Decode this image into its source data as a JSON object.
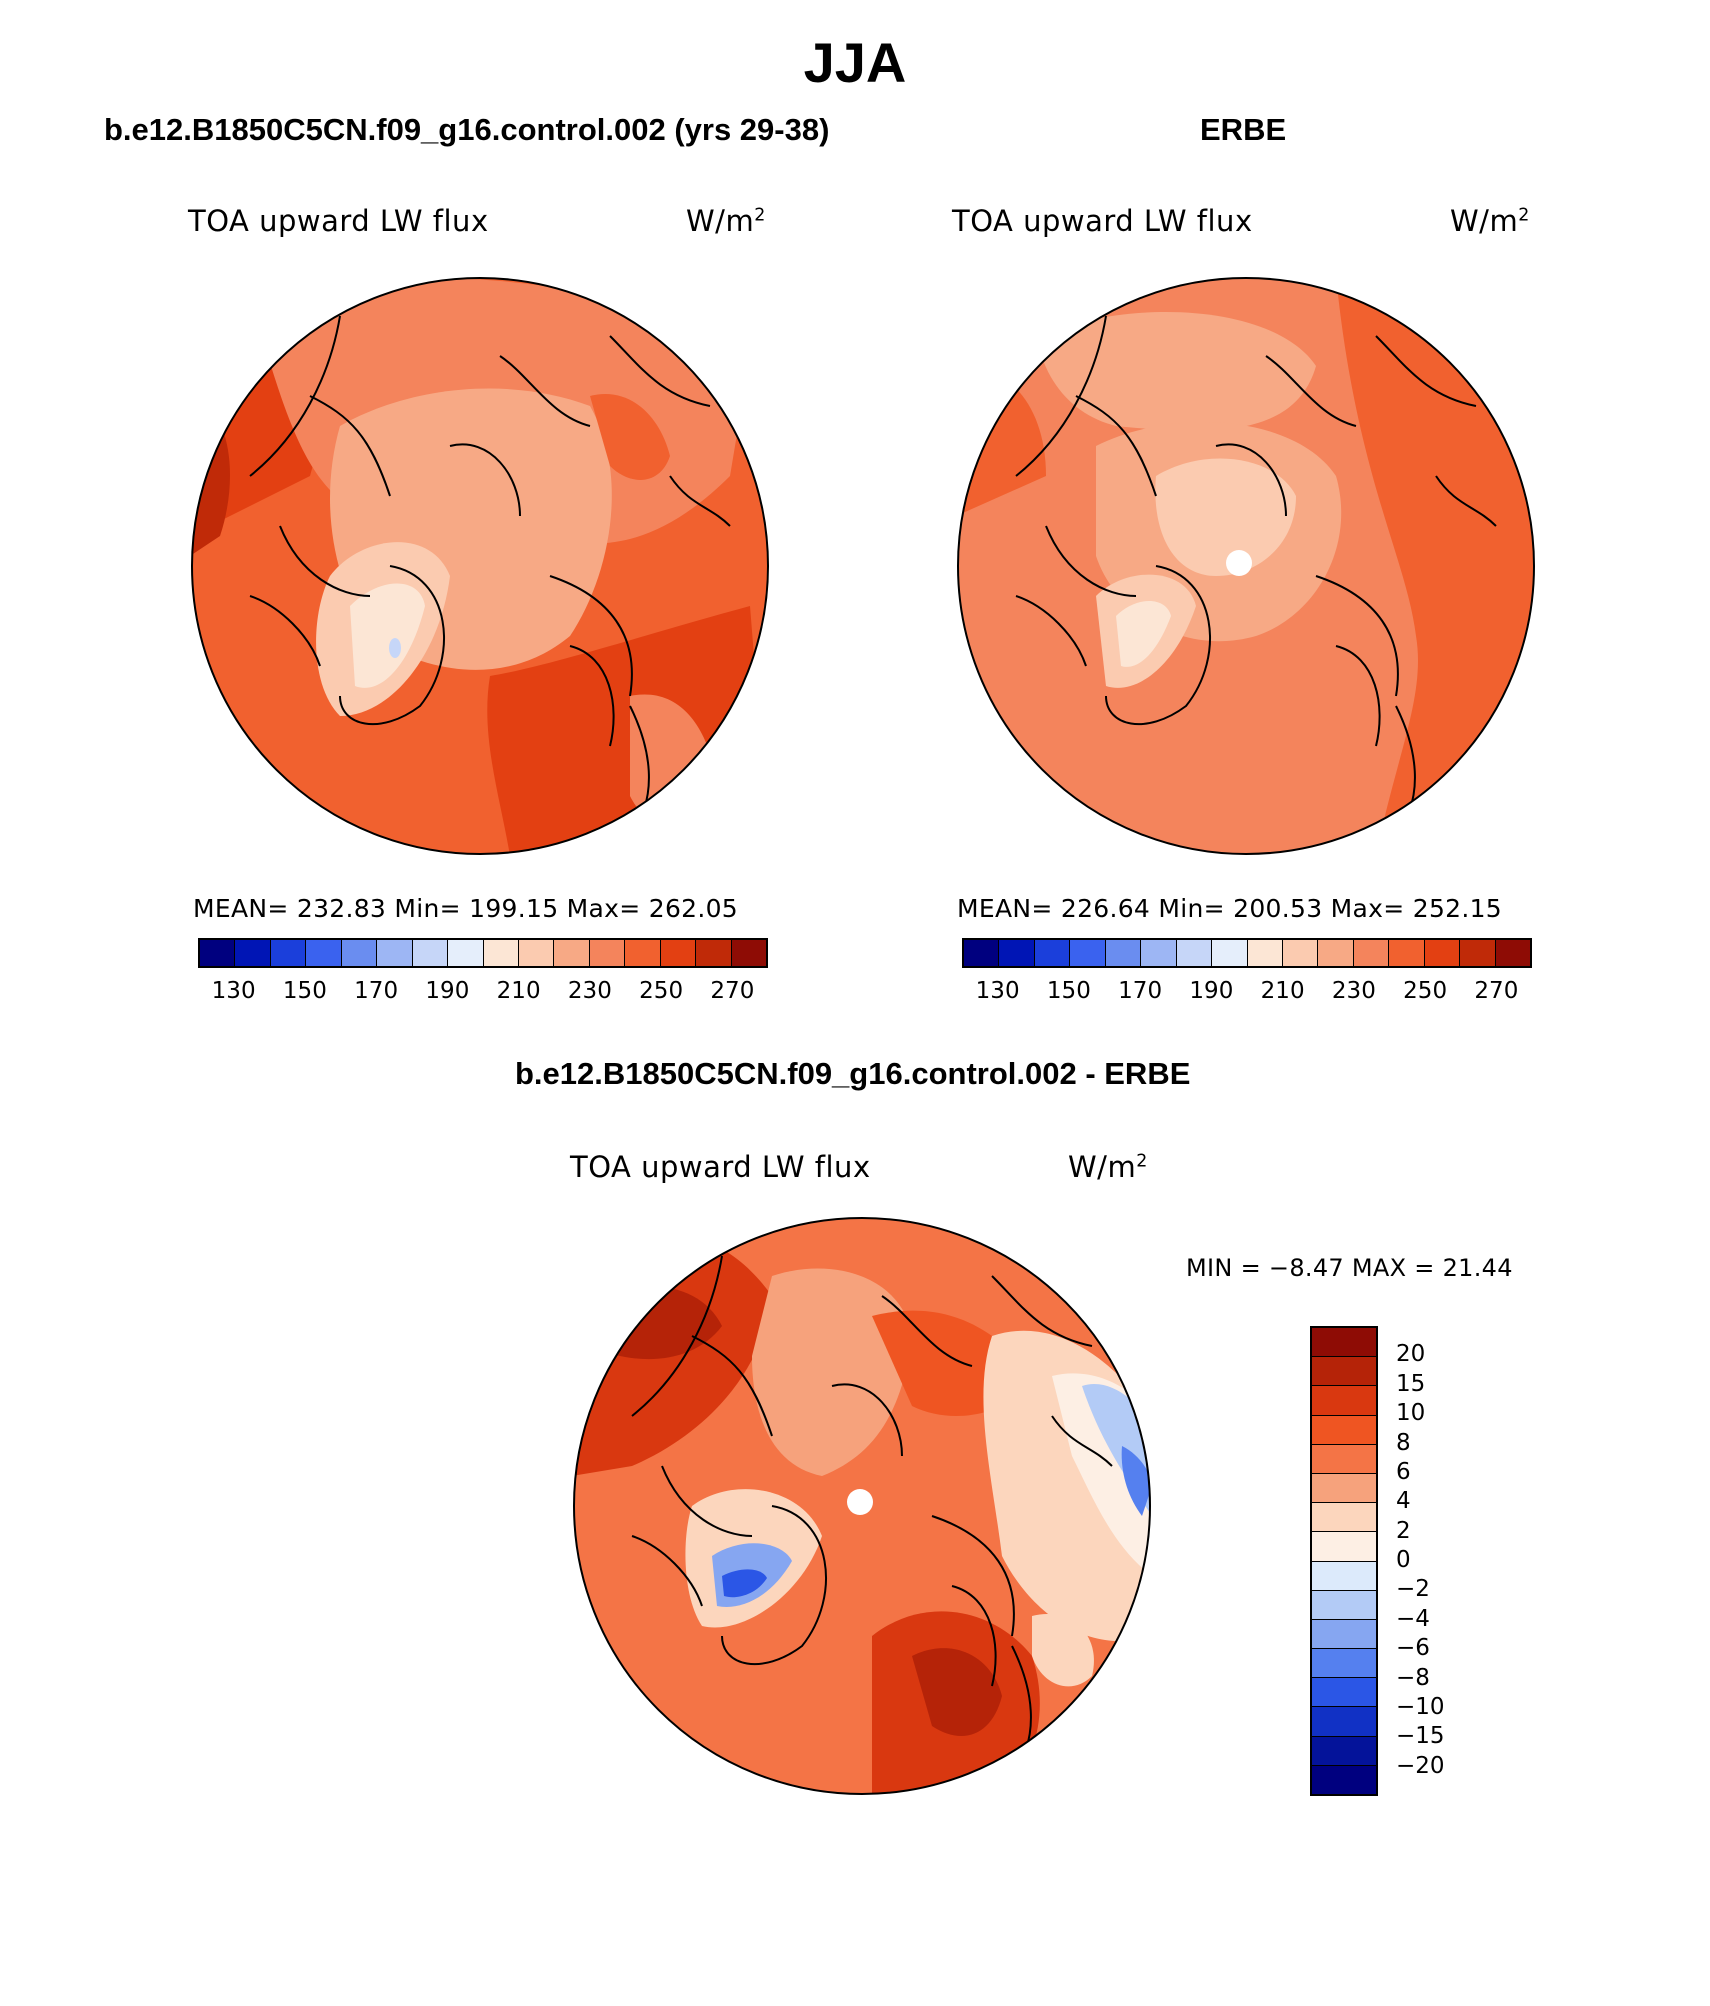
{
  "figure": {
    "title": "JJA",
    "field_label": "TOA upward LW flux",
    "units": "W/m²"
  },
  "panels": {
    "model": {
      "title": "b.e12.B1850C5CN.f09_g16.control.002 (yrs 29-38)",
      "field": "TOA upward LW flux",
      "units": "W/m²",
      "stats": "MEAN= 232.83   Min= 199.15   Max= 262.05"
    },
    "obs": {
      "title": "ERBE",
      "field": "TOA upward LW flux",
      "units": "W/m²",
      "stats": "MEAN= 226.64   Min= 200.53   Max= 252.15"
    },
    "diff": {
      "title": "b.e12.B1850C5CN.f09_g16.control.002 - ERBE",
      "field": "TOA upward LW flux",
      "units": "W/m²",
      "minmax": "MIN =   −8.47  MAX =   21.44"
    }
  },
  "colorbars": {
    "absolute": {
      "ticks": [
        "130",
        "150",
        "170",
        "190",
        "210",
        "230",
        "250",
        "270"
      ],
      "colors": [
        "#00007f",
        "#0015b5",
        "#1b3fdb",
        "#3a62ef",
        "#6a8df0",
        "#9db6f4",
        "#c6d6f8",
        "#e5eefb",
        "#fce6d5",
        "#fbcbb0",
        "#f7a985",
        "#f4845c",
        "#f1612f",
        "#e34012",
        "#c02a08",
        "#8e0c05"
      ]
    },
    "difference": {
      "labels": [
        "20",
        "15",
        "10",
        "8",
        "6",
        "4",
        "2",
        "0",
        "−2",
        "−4",
        "−6",
        "−8",
        "−10",
        "−15",
        "−20"
      ],
      "colors": [
        "#8e0c05",
        "#b52308",
        "#d93810",
        "#ef5522",
        "#f47446",
        "#f6a27c",
        "#fcd6bd",
        "#fdefe4",
        "#dceafb",
        "#b3cbf6",
        "#86a6f1",
        "#5580ef",
        "#2b56e6",
        "#1131c5",
        "#04139a",
        "#00007f"
      ]
    }
  }
}
